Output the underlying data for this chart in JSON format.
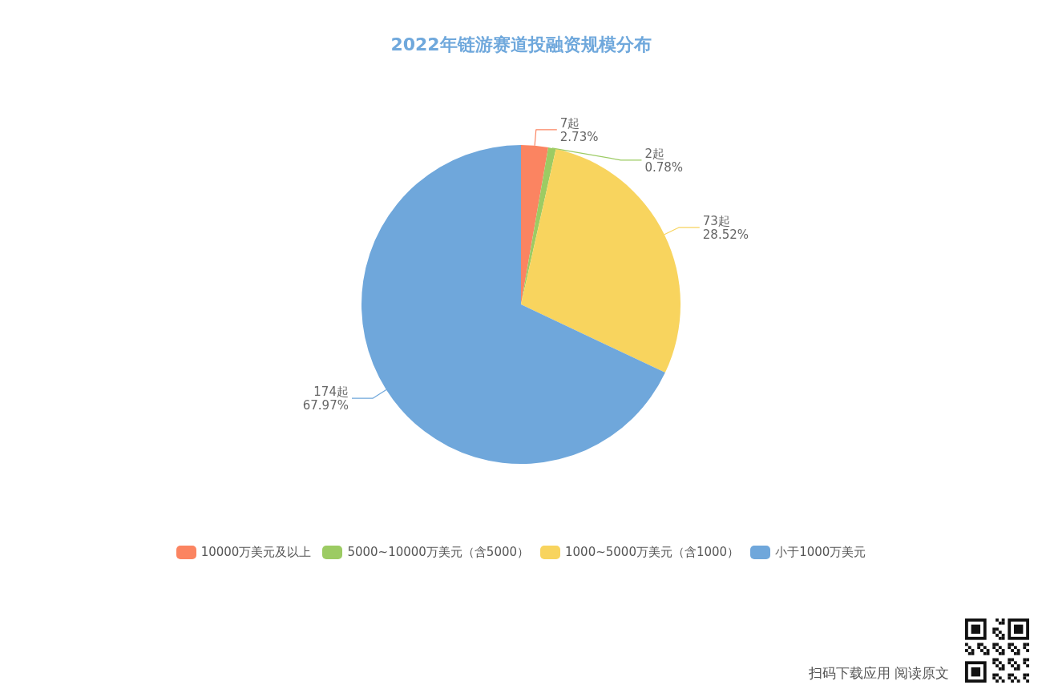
{
  "chart_data": {
    "type": "pie",
    "title": "2022年链游赛道投融资规模分布",
    "categories": [
      "10000万美元及以上",
      "5000~10000万美元（含5000）",
      "1000~5000万美元（含1000）",
      "小于1000万美元"
    ],
    "values": [
      7,
      2,
      73,
      174
    ],
    "colors": [
      "#fb8461",
      "#9ccb63",
      "#f8d45e",
      "#6fa7db"
    ],
    "value_labels": [
      "7起\n2.73%",
      "2起\n0.78%",
      "73起\n28.52%",
      "174起\n67.97%"
    ],
    "legend": "bottom",
    "annotations": [
      "扫码下载应用 阅读原文"
    ]
  }
}
